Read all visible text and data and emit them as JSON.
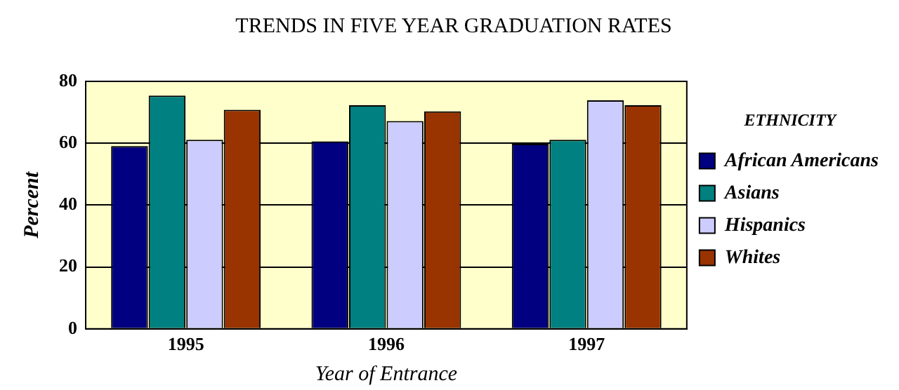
{
  "chart_data": {
    "type": "bar",
    "title": "TRENDS IN FIVE YEAR GRADUATION RATES",
    "xlabel": "Year of Entrance",
    "ylabel": "Percent",
    "legend_title": "ETHNICITY",
    "categories": [
      "1995",
      "1996",
      "1997"
    ],
    "series": [
      {
        "name": "African Americans",
        "color": "#000080",
        "values": [
          59.1,
          60.6,
          59.8
        ]
      },
      {
        "name": "Asians",
        "color": "#008080",
        "values": [
          75.4,
          72.3,
          61.1
        ]
      },
      {
        "name": "Hispanics",
        "color": "#ccccff",
        "values": [
          61.1,
          67.2,
          73.9
        ]
      },
      {
        "name": "Whites",
        "color": "#993300",
        "values": [
          70.8,
          70.3,
          72.3
        ]
      }
    ],
    "ylim": [
      0,
      80
    ],
    "yticks": [
      0,
      20,
      40,
      60,
      80
    ],
    "grid": "y",
    "legend": "right"
  }
}
